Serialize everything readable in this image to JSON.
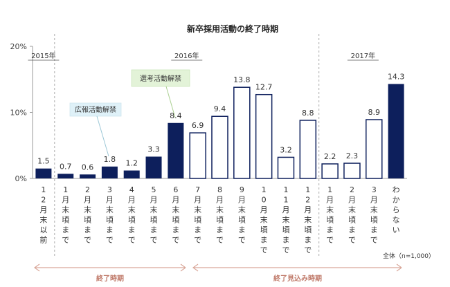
{
  "chart_data": {
    "type": "bar",
    "title": "新卒採用活動の終了時期",
    "ylim": [
      0,
      20
    ],
    "yticks": [
      "0%",
      "10%",
      "20%"
    ],
    "years": [
      "2015年",
      "2016年",
      "2017年"
    ],
    "categories": [
      "12月末以前",
      "1月末頃まで",
      "2月末頃まで",
      "3月末頃まで",
      "4月末頃まで",
      "5月末頃まで",
      "6月末頃まで",
      "7月末頃まで",
      "8月末頃まで",
      "9月末頃まで",
      "10月末頃まで",
      "11月末頃まで",
      "12月末頃まで",
      "1月末頃まで",
      "2月末頃まで",
      "3月末頃まで",
      "わからない"
    ],
    "category_labels": [
      "1\n2\n月\n末\n以\n前",
      "1\n月\n末\n頃\nま\nで",
      "2\n月\n末\n頃\nま\nで",
      "3\n月\n末\n頃\nま\nで",
      "4\n月\n末\n頃\nま\nで",
      "5\n月\n末\n頃\nま\nで",
      "6\n月\n末\n頃\nま\nで",
      "7\n月\n末\n頃\nま\nで",
      "8\n月\n末\n頃\nま\nで",
      "9\n月\n末\n頃\nま\nで",
      "1\n0\n月\n末\n頃\nま\nで",
      "1\n1\n月\n末\n頃\nま\nで",
      "1\n2\n月\n末\n頃\nま\nで",
      "1\n月\n末\n頃\nま\nで",
      "2\n月\n末\n頃\nま\nで",
      "3\n月\n末\n頃\nま\nで",
      "わ\nか\nら\nな\nい"
    ],
    "values": [
      1.5,
      0.7,
      0.6,
      1.8,
      1.2,
      3.3,
      8.4,
      6.9,
      9.4,
      13.8,
      12.7,
      3.2,
      8.8,
      2.2,
      2.3,
      8.9,
      14.3
    ],
    "value_labels": [
      "1.5",
      "0.7",
      "0.6",
      "1.8",
      "1.2",
      "3.3",
      "8.4",
      "6.9",
      "9.4",
      "13.8",
      "12.7",
      "3.2",
      "8.8",
      "2.2",
      "2.3",
      "8.9",
      "14.3"
    ],
    "bar_style": [
      "filled",
      "filled",
      "filled",
      "filled",
      "filled",
      "filled",
      "filled",
      "outline",
      "outline",
      "outline",
      "outline",
      "outline",
      "outline",
      "outline",
      "outline",
      "outline",
      "filled"
    ],
    "annotations": {
      "koho": "広報活動解禁",
      "senko": "選考活動解禁"
    },
    "periods": [
      "終了時期",
      "終了見込み時期"
    ],
    "note": "全体（n=1,000）",
    "colors": {
      "filled": "#0d1f5c",
      "outline_stroke": "#0d1f5c",
      "arrow": "#d9a79a",
      "koho_bg": "#dff1f8",
      "senko_bg": "#e3f3d8"
    }
  }
}
